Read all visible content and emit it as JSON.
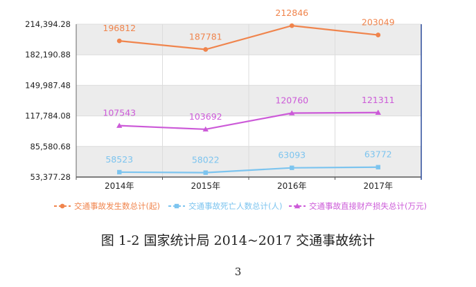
{
  "chart_data": {
    "type": "line",
    "categories": [
      "2014年",
      "2015年",
      "2016年",
      "2017年"
    ],
    "y_ticks": [
      "53,377.28",
      "85,580.68",
      "117,784.08",
      "149,987.48",
      "182,190.88",
      "214,394.28"
    ],
    "ylim": [
      53377.28,
      214394.28
    ],
    "grid": true,
    "legend_position": "bottom",
    "series": [
      {
        "name": "交通事故发生数总计(起)",
        "values": [
          196812,
          187781,
          212846,
          203049
        ],
        "color": "#f0844c",
        "marker": "circle"
      },
      {
        "name": "交通事故死亡人数总计(人)",
        "values": [
          58523,
          58022,
          63093,
          63772
        ],
        "color": "#7cc4ef",
        "marker": "square"
      },
      {
        "name": "交通事故直接财产损失总计(万元)",
        "values": [
          107543,
          103692,
          120760,
          121311
        ],
        "color": "#cc5ad8",
        "marker": "triangle"
      }
    ]
  },
  "caption": "图 1-2  国家统计局 2014~2017 交通事故统计",
  "page_number": "3"
}
